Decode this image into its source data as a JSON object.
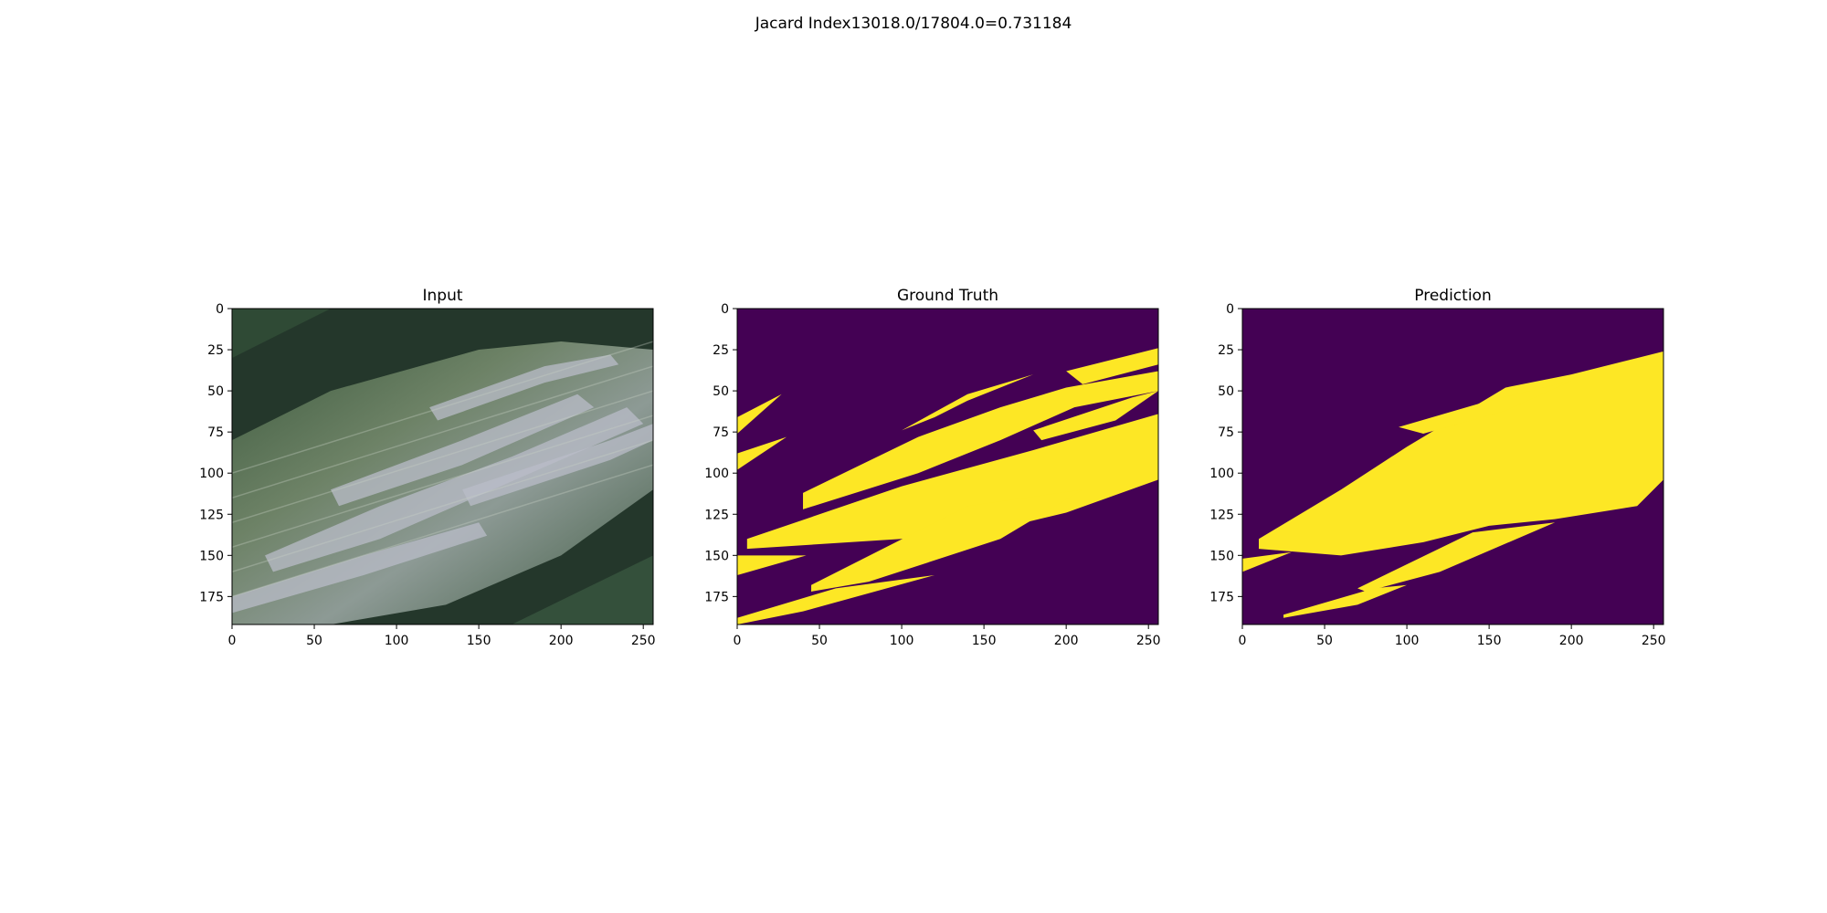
{
  "figure": {
    "suptitle": "Jacard Index13018.0/17804.0=0.731184"
  },
  "colors": {
    "mask_background": "#440154",
    "mask_foreground": "#fde725",
    "mask_edge": "#21918c"
  },
  "chart_data": [
    {
      "type": "image",
      "title": "Input",
      "xlim": [
        0,
        256
      ],
      "ylim": [
        192,
        0
      ],
      "xticks": [
        0,
        50,
        100,
        150,
        200,
        250
      ],
      "yticks": [
        0,
        25,
        50,
        75,
        100,
        125,
        150,
        175
      ],
      "content": "photo"
    },
    {
      "type": "heatmap",
      "title": "Ground Truth",
      "xlim": [
        0,
        256
      ],
      "ylim": [
        192,
        0
      ],
      "xticks": [
        0,
        50,
        100,
        150,
        200,
        250
      ],
      "yticks": [
        0,
        25,
        50,
        75,
        100,
        125,
        150,
        175
      ],
      "mask_regions": [
        [
          [
            0,
            66
          ],
          [
            27,
            52
          ],
          [
            0,
            76
          ]
        ],
        [
          [
            0,
            88
          ],
          [
            30,
            78
          ],
          [
            0,
            98
          ]
        ],
        [
          [
            40,
            112
          ],
          [
            110,
            78
          ],
          [
            160,
            60
          ],
          [
            200,
            48
          ],
          [
            256,
            38
          ],
          [
            256,
            50
          ],
          [
            205,
            60
          ],
          [
            160,
            80
          ],
          [
            110,
            100
          ],
          [
            40,
            122
          ]
        ],
        [
          [
            6,
            140
          ],
          [
            100,
            108
          ],
          [
            180,
            86
          ],
          [
            256,
            64
          ],
          [
            256,
            104
          ],
          [
            200,
            124
          ],
          [
            150,
            136
          ],
          [
            100,
            140
          ],
          [
            6,
            146
          ]
        ],
        [
          [
            0,
            150
          ],
          [
            42,
            150
          ],
          [
            0,
            162
          ]
        ],
        [
          [
            45,
            168
          ],
          [
            140,
            120
          ],
          [
            210,
            110
          ],
          [
            160,
            140
          ],
          [
            80,
            166
          ],
          [
            45,
            172
          ]
        ],
        [
          [
            0,
            188
          ],
          [
            60,
            170
          ],
          [
            120,
            162
          ],
          [
            40,
            184
          ],
          [
            0,
            192
          ]
        ],
        [
          [
            100,
            74
          ],
          [
            140,
            52
          ],
          [
            180,
            40
          ],
          [
            140,
            56
          ],
          [
            120,
            66
          ]
        ],
        [
          [
            200,
            38
          ],
          [
            256,
            24
          ],
          [
            256,
            34
          ],
          [
            210,
            46
          ]
        ],
        [
          [
            180,
            74
          ],
          [
            240,
            54
          ],
          [
            256,
            50
          ],
          [
            230,
            68
          ],
          [
            185,
            80
          ]
        ]
      ]
    },
    {
      "type": "heatmap",
      "title": "Prediction",
      "xlim": [
        0,
        256
      ],
      "ylim": [
        192,
        0
      ],
      "xticks": [
        0,
        50,
        100,
        150,
        200,
        250
      ],
      "yticks": [
        0,
        25,
        50,
        75,
        100,
        125,
        150,
        175
      ],
      "mask_regions": [
        [
          [
            10,
            140
          ],
          [
            60,
            110
          ],
          [
            100,
            84
          ],
          [
            160,
            48
          ],
          [
            200,
            40
          ],
          [
            240,
            30
          ],
          [
            256,
            26
          ],
          [
            256,
            56
          ],
          [
            256,
            104
          ],
          [
            240,
            120
          ],
          [
            190,
            128
          ],
          [
            150,
            132
          ],
          [
            110,
            142
          ],
          [
            60,
            150
          ],
          [
            10,
            146
          ]
        ],
        [
          [
            0,
            152
          ],
          [
            30,
            148
          ],
          [
            0,
            160
          ]
        ],
        [
          [
            25,
            186
          ],
          [
            80,
            170
          ],
          [
            100,
            168
          ],
          [
            70,
            180
          ],
          [
            25,
            188
          ]
        ],
        [
          [
            70,
            170
          ],
          [
            140,
            136
          ],
          [
            190,
            130
          ],
          [
            120,
            160
          ],
          [
            75,
            172
          ]
        ],
        [
          [
            95,
            72
          ],
          [
            150,
            56
          ],
          [
            200,
            44
          ],
          [
            160,
            62
          ],
          [
            110,
            76
          ]
        ]
      ]
    }
  ]
}
